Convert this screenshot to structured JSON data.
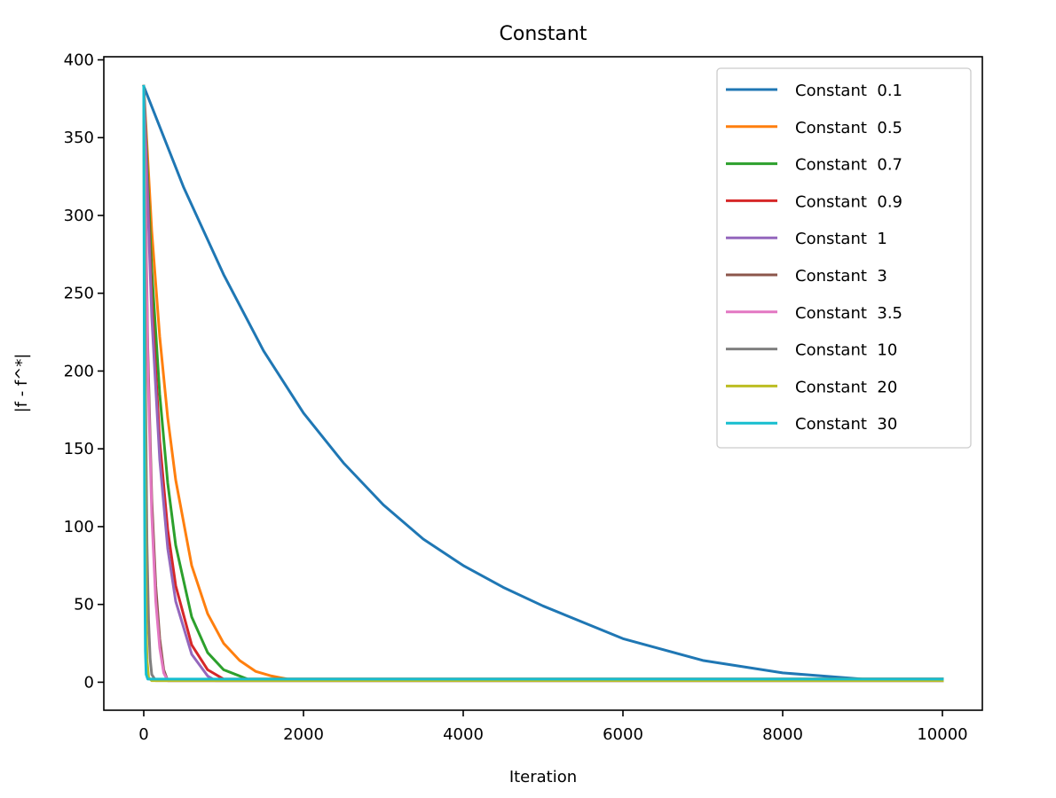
{
  "chart_data": {
    "type": "line",
    "title": "Constant",
    "xlabel": "Iteration",
    "ylabel": "|f - f^*|",
    "xlim": [
      -500,
      10500
    ],
    "ylim": [
      -18,
      402
    ],
    "x_ticks": [
      0,
      2000,
      4000,
      6000,
      8000,
      10000
    ],
    "x_tick_labels": [
      "0",
      "2000",
      "4000",
      "6000",
      "8000",
      "10000"
    ],
    "y_ticks": [
      0,
      50,
      100,
      150,
      200,
      250,
      300,
      350,
      400
    ],
    "y_tick_labels": [
      "0",
      "50",
      "100",
      "150",
      "200",
      "250",
      "300",
      "350",
      "400"
    ],
    "grid": false,
    "legend_position": "top-right",
    "series": [
      {
        "name": "Constant  0.1",
        "color": "#1f77b4",
        "x": [
          0,
          500,
          1000,
          1500,
          2000,
          2500,
          3000,
          3500,
          4000,
          4500,
          5000,
          6000,
          7000,
          8000,
          9000,
          10000
        ],
        "y": [
          383,
          318,
          262,
          213,
          173,
          141,
          114,
          92,
          75,
          61,
          49,
          28,
          14,
          6,
          2,
          2
        ]
      },
      {
        "name": "Constant  0.5",
        "color": "#ff7f0e",
        "x": [
          0,
          100,
          200,
          300,
          400,
          600,
          800,
          1000,
          1200,
          1400,
          1600,
          1800,
          2500,
          10000
        ],
        "y": [
          383,
          290,
          222,
          170,
          130,
          75,
          44,
          25,
          14,
          7,
          4,
          2,
          2,
          2
        ]
      },
      {
        "name": "Constant  0.7",
        "color": "#2ca02c",
        "x": [
          0,
          100,
          200,
          300,
          400,
          600,
          800,
          1000,
          1300,
          1500,
          10000
        ],
        "y": [
          383,
          265,
          185,
          128,
          88,
          42,
          19,
          8,
          2,
          2,
          2
        ]
      },
      {
        "name": "Constant  0.9",
        "color": "#d62728",
        "x": [
          0,
          100,
          200,
          300,
          400,
          600,
          800,
          1000,
          1200,
          10000
        ],
        "y": [
          383,
          245,
          155,
          98,
          62,
          24,
          8,
          2,
          2,
          2
        ]
      },
      {
        "name": "Constant  1",
        "color": "#9467bd",
        "x": [
          0,
          100,
          200,
          300,
          400,
          600,
          800,
          900,
          10000
        ],
        "y": [
          383,
          235,
          143,
          86,
          52,
          18,
          4,
          1,
          1
        ]
      },
      {
        "name": "Constant  3",
        "color": "#8c564b",
        "x": [
          0,
          50,
          100,
          150,
          200,
          250,
          300,
          10000
        ],
        "y": [
          383,
          215,
          118,
          62,
          28,
          8,
          1,
          1
        ]
      },
      {
        "name": "Constant  3.5",
        "color": "#e377c2",
        "x": [
          0,
          50,
          100,
          150,
          200,
          250,
          300,
          10000
        ],
        "y": [
          383,
          205,
          108,
          52,
          22,
          6,
          1,
          1
        ]
      },
      {
        "name": "Constant  10",
        "color": "#7f7f7f",
        "x": [
          0,
          20,
          40,
          60,
          80,
          100,
          150,
          10000
        ],
        "y": [
          383,
          200,
          90,
          40,
          15,
          5,
          1,
          1
        ]
      },
      {
        "name": "Constant  20",
        "color": "#bcbd22",
        "x": [
          0,
          10,
          20,
          30,
          40,
          60,
          100,
          10000
        ],
        "y": [
          383,
          220,
          100,
          40,
          15,
          3,
          1,
          1
        ]
      },
      {
        "name": "Constant  30",
        "color": "#17becf",
        "x": [
          0,
          5,
          10,
          15,
          20,
          30,
          50,
          10000
        ],
        "y": [
          383,
          250,
          120,
          55,
          20,
          5,
          2,
          2
        ]
      }
    ]
  }
}
